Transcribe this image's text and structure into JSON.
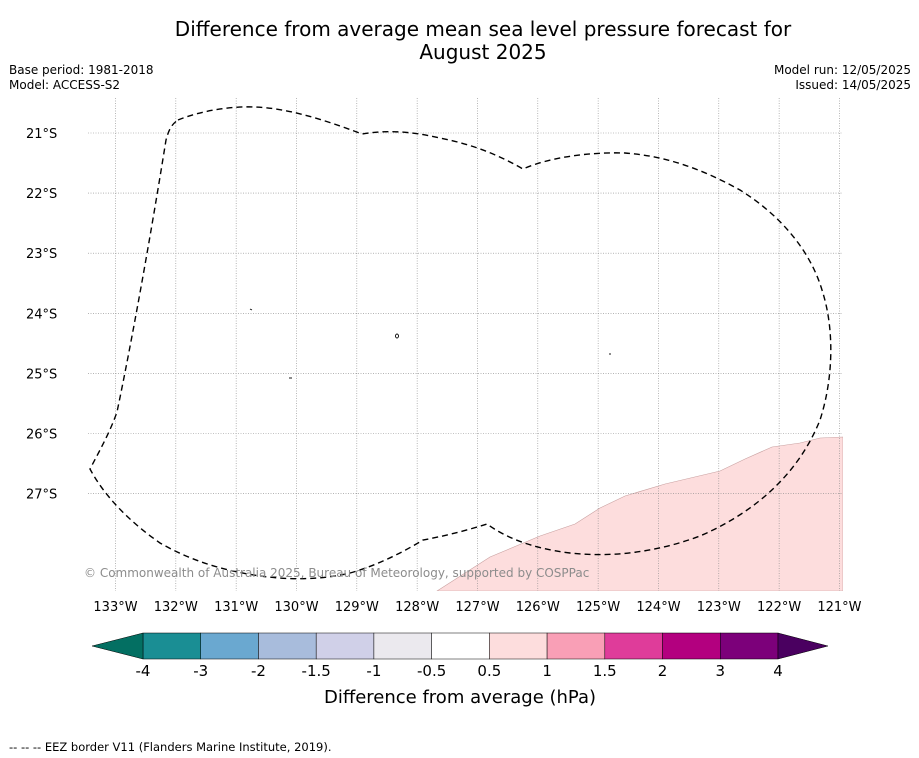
{
  "title_line1": "Difference from average mean sea level pressure forecast for",
  "title_line2": "August 2025",
  "base_period": "Base period: 1981-2018",
  "model": "Model: ACCESS-S2",
  "model_run": "Model run: 12/05/2025",
  "issued": "Issued: 14/05/2025",
  "copyright": "© Commonwealth of Australia 2025, Bureau of Meteorology, supported by COSPPac",
  "footnote": "--  --  -- EEZ border V11 (Flanders Marine Institute, 2019).",
  "colors": {
    "anomaly_fill": "#fddddd",
    "eez_line": "#000000",
    "grid": "#888888"
  },
  "map": {
    "lat_labels": [
      "21°S",
      "22°S",
      "23°S",
      "24°S",
      "25°S",
      "26°S",
      "27°S"
    ],
    "lon_labels": [
      "133°W",
      "132°W",
      "131°W",
      "130°W",
      "129°W",
      "128°W",
      "127°W",
      "126°W",
      "125°W",
      "124°W",
      "123°W",
      "122°W",
      "121°W"
    ]
  },
  "colorbar": {
    "label": "Difference from average (hPa)",
    "tick_labels": [
      "-4",
      "-3",
      "-2",
      "-1.5",
      "-1",
      "-0.5",
      "0.5",
      "1",
      "1.5",
      "2",
      "3",
      "4"
    ],
    "colors": [
      "#1a8e94",
      "#6aa8d0",
      "#a8bcdc",
      "#d0d0e8",
      "#ebe9ee",
      "#ffffff",
      "#fddddd",
      "#f99fb6",
      "#df3c9a",
      "#b3007f",
      "#7c007a"
    ],
    "under_color": "#036f62",
    "over_color": "#4a0060"
  }
}
